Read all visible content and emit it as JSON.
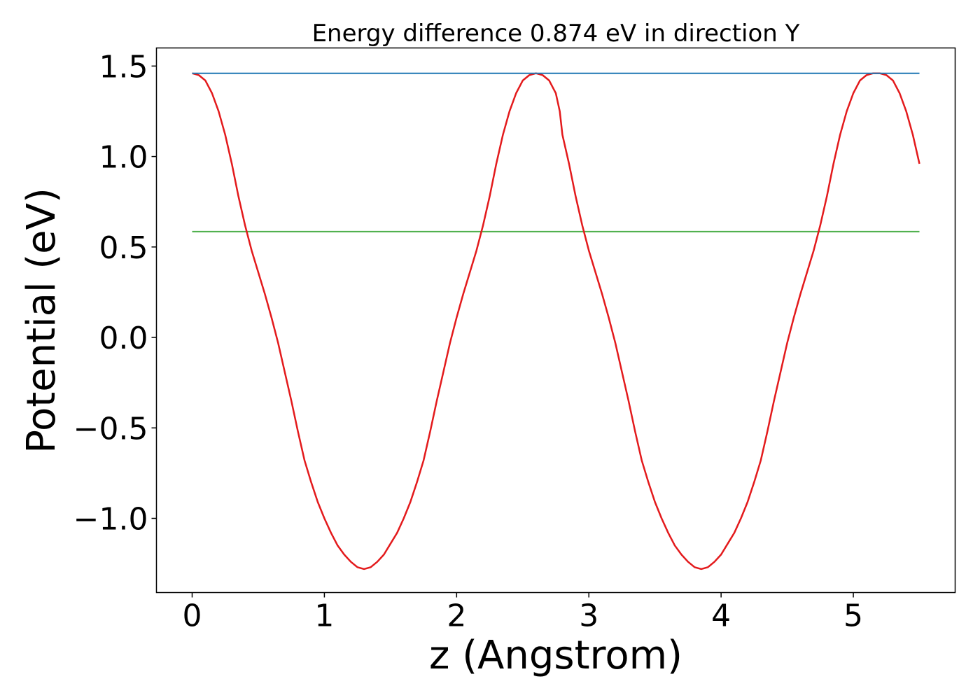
{
  "chart_data": {
    "type": "line",
    "title": "Energy difference 0.874 eV in direction Y",
    "xlabel": "z (Angstrom)",
    "ylabel": "Potential (eV)",
    "xlim": [
      -0.27,
      5.77
    ],
    "ylim": [
      -1.41,
      1.6
    ],
    "x_ticks": [
      0,
      1,
      2,
      3,
      4,
      5
    ],
    "x_tick_labels": [
      "0",
      "1",
      "2",
      "3",
      "4",
      "5"
    ],
    "y_ticks": [
      1.5,
      1.0,
      0.5,
      0.0,
      -0.5,
      -1.0
    ],
    "y_tick_labels": [
      "1.5",
      "1.0",
      "0.5",
      "0.0",
      "−0.5",
      "−1.0"
    ],
    "grid": false,
    "legend": "none",
    "colors": {
      "potential": "#e31a1c",
      "max_line": "#1f77b4",
      "mean_line": "#4daf4a"
    },
    "series": [
      {
        "key": "potential",
        "x": [
          0.0,
          0.05,
          0.1,
          0.15,
          0.2,
          0.25,
          0.3,
          0.35,
          0.4,
          0.45,
          0.5,
          0.55,
          0.6,
          0.65,
          0.7,
          0.75,
          0.8,
          0.85,
          0.9,
          0.95,
          1.0,
          1.05,
          1.1,
          1.15,
          1.2,
          1.25,
          1.3,
          1.35,
          1.4,
          1.45,
          1.5,
          1.55,
          1.6,
          1.65,
          1.7,
          1.75,
          1.8,
          1.85,
          1.9,
          1.95,
          2.0,
          2.05,
          2.1,
          2.15,
          2.2,
          2.25,
          2.3,
          2.35,
          2.4,
          2.45,
          2.5,
          2.55,
          2.6,
          2.65,
          2.7,
          2.75,
          2.78,
          2.8,
          2.85,
          2.9,
          2.95,
          3.0,
          3.05,
          3.1,
          3.15,
          3.2,
          3.25,
          3.3,
          3.35,
          3.4,
          3.45,
          3.5,
          3.55,
          3.6,
          3.65,
          3.7,
          3.75,
          3.8,
          3.85,
          3.9,
          3.95,
          4.0,
          4.05,
          4.1,
          4.15,
          4.2,
          4.25,
          4.3,
          4.35,
          4.4,
          4.45,
          4.5,
          4.55,
          4.6,
          4.65,
          4.7,
          4.75,
          4.8,
          4.85,
          4.9,
          4.95,
          5.0,
          5.05,
          5.1,
          5.15,
          5.2,
          5.25,
          5.3,
          5.35,
          5.4,
          5.45,
          5.5
        ],
        "y": [
          1.46,
          1.45,
          1.42,
          1.35,
          1.25,
          1.12,
          0.96,
          0.78,
          0.62,
          0.48,
          0.36,
          0.24,
          0.11,
          -0.03,
          -0.19,
          -0.35,
          -0.52,
          -0.68,
          -0.8,
          -0.91,
          -1.0,
          -1.08,
          -1.15,
          -1.2,
          -1.24,
          -1.27,
          -1.28,
          -1.27,
          -1.24,
          -1.2,
          -1.14,
          -1.08,
          -1.0,
          -0.91,
          -0.8,
          -0.68,
          -0.52,
          -0.35,
          -0.19,
          -0.03,
          0.11,
          0.24,
          0.36,
          0.48,
          0.62,
          0.78,
          0.96,
          1.12,
          1.25,
          1.35,
          1.42,
          1.45,
          1.46,
          1.45,
          1.42,
          1.35,
          1.25,
          1.12,
          0.96,
          0.78,
          0.62,
          0.48,
          0.36,
          0.24,
          0.11,
          -0.03,
          -0.19,
          -0.35,
          -0.52,
          -0.68,
          -0.8,
          -0.91,
          -1.0,
          -1.08,
          -1.15,
          -1.2,
          -1.24,
          -1.27,
          -1.28,
          -1.27,
          -1.24,
          -1.2,
          -1.14,
          -1.08,
          -1.0,
          -0.91,
          -0.8,
          -0.68,
          -0.52,
          -0.35,
          -0.19,
          -0.03,
          0.11,
          0.24,
          0.36,
          0.48,
          0.62,
          0.78,
          0.96,
          1.12,
          1.25,
          1.35,
          1.42,
          1.45,
          1.46,
          1.46,
          1.45,
          1.42,
          1.35,
          1.25,
          1.12,
          0.96
        ]
      },
      {
        "key": "max_line",
        "x": [
          0.0,
          5.5
        ],
        "y": [
          1.46,
          1.46
        ]
      },
      {
        "key": "mean_line",
        "x": [
          0.0,
          5.5
        ],
        "y": [
          0.585,
          0.585
        ]
      }
    ]
  }
}
